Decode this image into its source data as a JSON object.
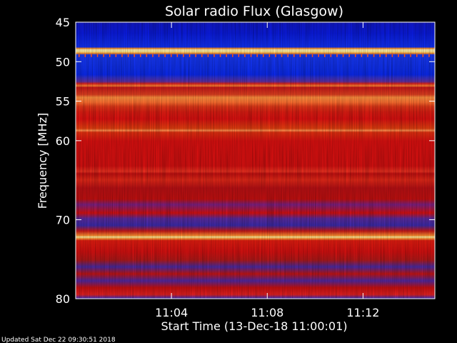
{
  "chart_data": {
    "type": "heatmap",
    "title": "Solar radio Flux (Glasgow)",
    "xlabel": "Start Time (13-Dec-18 11:00:01)",
    "ylabel": "Frequency [MHz]",
    "ylim": [
      45,
      80
    ],
    "y_inverted": true,
    "y_ticks": [
      {
        "value": 45,
        "label": "45"
      },
      {
        "value": 50,
        "label": "50"
      },
      {
        "value": 55,
        "label": "55"
      },
      {
        "value": 60,
        "label": "60"
      },
      {
        "value": 70,
        "label": "70"
      },
      {
        "value": 80,
        "label": "80"
      }
    ],
    "x_ticks": [
      {
        "minute": 4,
        "label": "11:04"
      },
      {
        "minute": 8,
        "label": "11:08"
      },
      {
        "minute": 12,
        "label": "11:12"
      }
    ],
    "xlim_minutes": [
      0,
      15
    ],
    "grid": false,
    "colors": {
      "low": "#0a1ad8",
      "mid": "#d81010",
      "high": "#ffe890"
    }
  },
  "footer": {
    "updated": "Updated Sat Dec 22 09:30:51 2018"
  }
}
